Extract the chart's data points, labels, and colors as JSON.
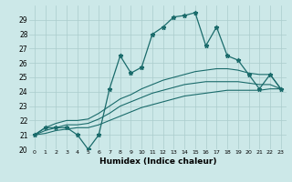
{
  "xlabel": "Humidex (Indice chaleur)",
  "bg_color": "#cce8e8",
  "grid_color": "#aacccc",
  "line_color": "#1a6b6b",
  "xlim": [
    -0.5,
    23.5
  ],
  "ylim": [
    20,
    30
  ],
  "xticks": [
    0,
    1,
    2,
    3,
    4,
    5,
    6,
    7,
    8,
    9,
    10,
    11,
    12,
    13,
    14,
    15,
    16,
    17,
    18,
    19,
    20,
    21,
    22,
    23
  ],
  "yticks": [
    20,
    21,
    22,
    23,
    24,
    25,
    26,
    27,
    28,
    29
  ],
  "humidex_main": [
    21.0,
    21.5,
    21.5,
    21.5,
    21.0,
    20.0,
    21.0,
    24.2,
    26.5,
    25.3,
    25.7,
    28.0,
    28.5,
    29.2,
    29.3,
    29.5,
    27.2,
    28.5,
    26.5,
    26.2,
    25.2,
    24.2,
    25.2,
    24.2
  ],
  "line_upper": [
    21.0,
    21.5,
    21.8,
    22.0,
    22.0,
    22.1,
    22.5,
    23.0,
    23.5,
    23.8,
    24.2,
    24.5,
    24.8,
    25.0,
    25.2,
    25.4,
    25.5,
    25.6,
    25.6,
    25.5,
    25.3,
    25.2,
    25.2,
    24.2
  ],
  "line_mid": [
    21.0,
    21.3,
    21.5,
    21.7,
    21.7,
    21.8,
    22.1,
    22.5,
    23.0,
    23.3,
    23.6,
    23.9,
    24.1,
    24.3,
    24.5,
    24.6,
    24.7,
    24.7,
    24.7,
    24.7,
    24.6,
    24.5,
    24.5,
    24.2
  ],
  "line_lower": [
    21.0,
    21.1,
    21.3,
    21.4,
    21.5,
    21.5,
    21.7,
    22.0,
    22.3,
    22.6,
    22.9,
    23.1,
    23.3,
    23.5,
    23.7,
    23.8,
    23.9,
    24.0,
    24.1,
    24.1,
    24.1,
    24.1,
    24.2,
    24.2
  ]
}
